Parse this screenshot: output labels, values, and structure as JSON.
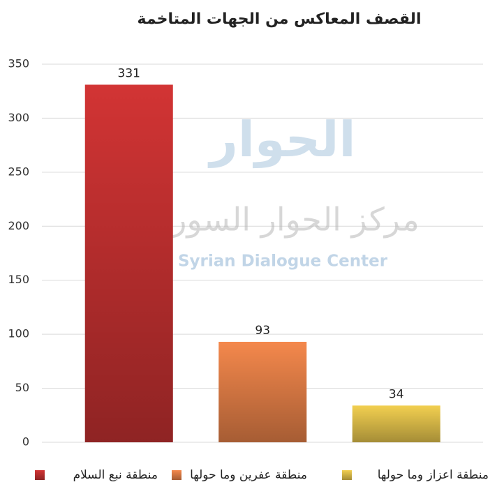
{
  "chart_data": {
    "type": "bar",
    "title": "القصف المعاكس من الجهات المتاخمة",
    "categories": [
      "منطقة نبع السلام",
      "منطقة عفرين وما حولها",
      "منطقة اعزاز وما حولها"
    ],
    "values": [
      331,
      93,
      34
    ],
    "colors": [
      "#d23434",
      "#f4884c",
      "#f2cf50"
    ],
    "ylim": [
      0,
      350
    ],
    "yticks": [
      0,
      50,
      100,
      150,
      200,
      250,
      300,
      350
    ],
    "grid": true,
    "legend": "bottom",
    "watermark": {
      "logo": "الحوار",
      "name_ar": "مركز الحوار السوري",
      "name_en": "Syrian Dialogue Center"
    }
  }
}
